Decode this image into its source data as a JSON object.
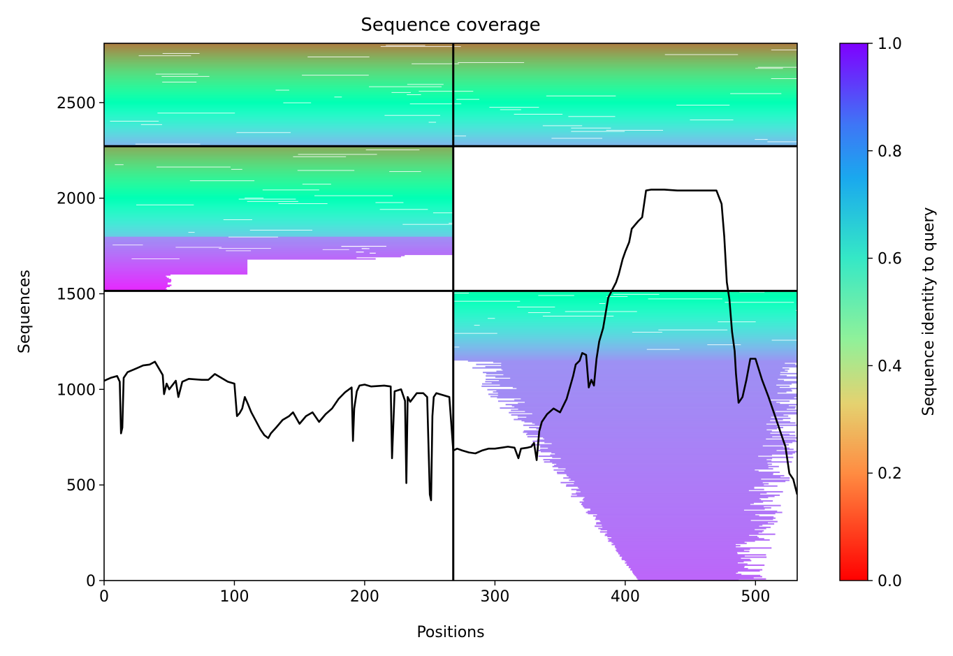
{
  "chart_data": {
    "type": "heatmap",
    "title": "Sequence coverage",
    "xlabel": "Positions",
    "ylabel": "Sequences",
    "xlim": [
      0,
      532
    ],
    "ylim": [
      0,
      2810
    ],
    "x_ticks": [
      0,
      100,
      200,
      300,
      400,
      500
    ],
    "y_ticks": [
      0,
      500,
      1000,
      1500,
      2000,
      2500
    ],
    "segment_boundaries": {
      "positions": [
        268
      ],
      "sequences": [
        1515,
        2272
      ]
    },
    "colorbar": {
      "label": "Sequence identity to query",
      "colormap": "rainbow",
      "range": [
        0.0,
        1.0
      ],
      "ticks": [
        0.0,
        0.2,
        0.4,
        0.6,
        0.8,
        1.0
      ],
      "tick_labels": [
        "0.0",
        "0.2",
        "0.4",
        "0.6",
        "0.8",
        "1.0"
      ]
    },
    "coverage_line": {
      "name": "",
      "color": "#000000",
      "x": [
        0,
        5,
        10,
        12,
        13,
        14,
        15,
        18,
        25,
        30,
        35,
        39,
        42,
        45,
        46,
        48,
        50,
        55,
        57,
        60,
        65,
        75,
        80,
        85,
        90,
        95,
        100,
        102,
        104,
        106,
        108,
        110,
        113,
        120,
        123,
        126,
        128,
        132,
        137,
        142,
        145,
        150,
        155,
        160,
        165,
        170,
        175,
        180,
        185,
        190,
        191,
        192,
        194,
        196,
        200,
        205,
        215,
        220,
        221,
        223,
        228,
        231,
        232,
        233,
        235,
        240,
        245,
        248,
        250,
        251,
        252,
        253,
        255,
        260,
        265,
        268,
        271,
        275,
        280,
        285,
        290,
        295,
        300,
        305,
        310,
        315,
        318,
        320,
        325,
        328,
        330,
        332,
        334,
        336,
        340,
        345,
        350,
        355,
        360,
        362,
        365,
        367,
        370,
        372,
        374,
        376,
        378,
        380,
        383,
        385,
        387,
        390,
        393,
        395,
        398,
        400,
        403,
        405,
        410,
        413,
        416,
        420,
        430,
        440,
        450,
        460,
        470,
        474,
        476,
        478,
        480,
        482,
        484,
        485,
        487,
        490,
        493,
        496,
        500,
        505,
        510,
        515,
        520,
        523,
        526,
        529,
        532
      ],
      "y": [
        1045,
        1060,
        1070,
        1040,
        770,
        800,
        1060,
        1090,
        1110,
        1125,
        1130,
        1145,
        1110,
        1075,
        975,
        1030,
        1000,
        1045,
        960,
        1040,
        1055,
        1050,
        1050,
        1080,
        1060,
        1040,
        1030,
        860,
        875,
        900,
        960,
        930,
        880,
        790,
        760,
        745,
        770,
        800,
        840,
        860,
        880,
        820,
        860,
        880,
        830,
        870,
        900,
        950,
        985,
        1010,
        730,
        900,
        990,
        1020,
        1025,
        1015,
        1020,
        1015,
        640,
        990,
        1000,
        940,
        510,
        960,
        935,
        980,
        980,
        960,
        450,
        420,
        860,
        960,
        980,
        970,
        960,
        680,
        690,
        680,
        670,
        665,
        680,
        690,
        690,
        695,
        700,
        695,
        640,
        690,
        695,
        700,
        720,
        630,
        780,
        830,
        870,
        900,
        880,
        950,
        1070,
        1130,
        1150,
        1190,
        1180,
        1010,
        1050,
        1020,
        1160,
        1250,
        1320,
        1400,
        1480,
        1520,
        1560,
        1600,
        1680,
        1720,
        1770,
        1840,
        1880,
        1900,
        2040,
        2045,
        2045,
        2040,
        2040,
        2040,
        2040,
        1970,
        1800,
        1560,
        1470,
        1300,
        1200,
        1080,
        930,
        960,
        1050,
        1160,
        1160,
        1050,
        960,
        860,
        760,
        700,
        560,
        530,
        450
      ]
    }
  }
}
